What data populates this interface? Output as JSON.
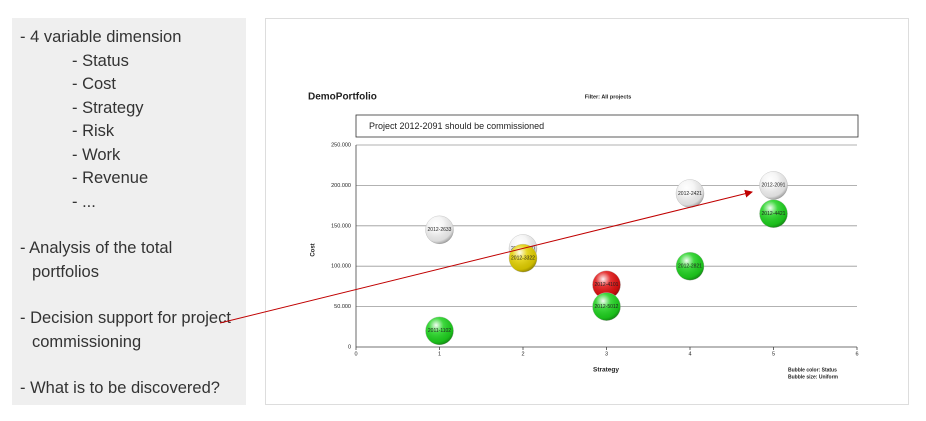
{
  "panel": {
    "bullets": [
      {
        "text": "- 4 variable dimension",
        "sub": [
          "- Status",
          "- Cost",
          "- Strategy",
          "- Risk",
          "- Work",
          "- Revenue",
          "- ..."
        ]
      },
      {
        "text": "- Analysis of the total portfolios"
      },
      {
        "text": "- Decision support for project commissioning"
      },
      {
        "text": "- What is to be discovered?"
      }
    ]
  },
  "chart_data": {
    "type": "bubble",
    "title": "DemoPortfolio",
    "subtitle": "Filter: All projects",
    "annotation": "Project 2012-2091 should be commissioned",
    "x_label": "Strategy",
    "y_label": "Cost",
    "notes": [
      "Bubble color: Status",
      "Bubble size: Uniform"
    ],
    "xlim": [
      0,
      6
    ],
    "xticks": [
      0,
      1,
      2,
      3,
      4,
      5,
      6
    ],
    "ylim": [
      0,
      250000
    ],
    "yticks": [
      0,
      {
        "value": 50000,
        "label": "50.000"
      },
      {
        "value": 100000,
        "label": "100.000"
      },
      {
        "value": 150000,
        "label": "150.000"
      },
      {
        "value": 200000,
        "label": "200.000"
      },
      {
        "value": 250000,
        "label": "250.000"
      }
    ],
    "grid": true,
    "points": [
      {
        "label": "2012-2633",
        "x": 1,
        "y": 145000,
        "color": "#f4f4f4"
      },
      {
        "label": "2011-1102",
        "x": 1,
        "y": 20000,
        "color": "#1ed21e"
      },
      {
        "label": "2012-3320",
        "x": 2,
        "y": 122000,
        "color": "#f4f4f4"
      },
      {
        "label": "2012-3322",
        "x": 2,
        "y": 110000,
        "color": "#e3d000"
      },
      {
        "label": "2012-4101",
        "x": 3,
        "y": 77000,
        "color": "#e01010"
      },
      {
        "label": "2012-5012",
        "x": 3,
        "y": 50000,
        "color": "#1ed21e"
      },
      {
        "label": "2012-2421",
        "x": 4,
        "y": 190000,
        "color": "#f4f4f4"
      },
      {
        "label": "2012-2821",
        "x": 4,
        "y": 100000,
        "color": "#1ed21e"
      },
      {
        "label": "2012-2091",
        "x": 5,
        "y": 200000,
        "color": "#f4f4f4"
      },
      {
        "label": "2012-4421",
        "x": 5,
        "y": 165000,
        "color": "#1ed21e"
      }
    ]
  }
}
